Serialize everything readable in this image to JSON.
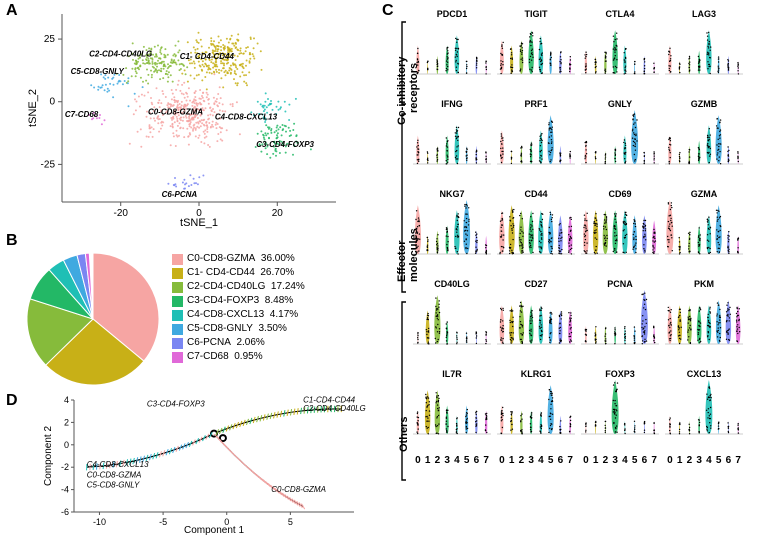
{
  "panels": {
    "A": "A",
    "B": "B",
    "C": "C",
    "D": "D"
  },
  "colors": {
    "C0": "#f6a5a3",
    "C1": "#c8b017",
    "C2": "#86bb3b",
    "C3": "#23b866",
    "C4": "#1fbfb5",
    "C5": "#3fa9e0",
    "C6": "#7a86f2",
    "C7": "#e069d8",
    "axis": "#555555",
    "text": "#000000",
    "trajGrey": "#888888"
  },
  "tsne": {
    "xlabel": "tSNE_1",
    "ylabel": "tSNE_2",
    "xlim": [
      -35,
      35
    ],
    "ylim": [
      -40,
      35
    ],
    "xticks": [
      -20,
      0,
      20
    ],
    "yticks": [
      -25,
      0,
      25
    ],
    "labels": {
      "C0": "C0-CD8-GZMA",
      "C1": "C1- CD4-CD44",
      "C2": "C2-CD4-CD40LG",
      "C3": "C3-CD4-FOXP3",
      "C4": "C4-CD8-CXCL13",
      "C5": "C5-CD8-GNLY",
      "C6": "C6-PCNA",
      "C7": "C7-CD68"
    },
    "label_pos": {
      "C0": [
        -6,
        -5
      ],
      "C1": [
        2,
        17
      ],
      "C2": [
        -20,
        18
      ],
      "C3": [
        22,
        -18
      ],
      "C4": [
        12,
        -7
      ],
      "C5": [
        -26,
        11
      ],
      "C6": [
        -5,
        -38
      ],
      "C7": [
        -30,
        -6
      ]
    },
    "centroids": {
      "C0": [
        -3,
        -5
      ],
      "C1": [
        6,
        17
      ],
      "C2": [
        -11,
        15
      ],
      "C3": [
        20,
        -15
      ],
      "C4": [
        18,
        -3
      ],
      "C5": [
        -22,
        7
      ],
      "C6": [
        -4,
        -33
      ],
      "C7": [
        -27,
        -6
      ]
    },
    "n_per_cluster": {
      "C0": 360,
      "C1": 267,
      "C2": 172,
      "C3": 85,
      "C4": 42,
      "C5": 35,
      "C6": 21,
      "C7": 10
    },
    "spread": {
      "C0": 13,
      "C1": 11,
      "C2": 9,
      "C3": 8,
      "C4": 6,
      "C5": 7,
      "C6": 5,
      "C7": 4
    }
  },
  "pie": {
    "items": [
      {
        "id": "C0",
        "label": "C0-CD8-GZMA",
        "pct": 36.0
      },
      {
        "id": "C1",
        "label": "C1- CD4-CD44",
        "pct": 26.7
      },
      {
        "id": "C2",
        "label": "C2-CD4-CD40LG",
        "pct": 17.24
      },
      {
        "id": "C3",
        "label": "C3-CD4-FOXP3",
        "pct": 8.48
      },
      {
        "id": "C4",
        "label": "C4-CD8-CXCL13",
        "pct": 4.17
      },
      {
        "id": "C5",
        "label": "C5-CD8-GNLY",
        "pct": 3.5
      },
      {
        "id": "C6",
        "label": "C6-PCNA",
        "pct": 2.06
      },
      {
        "id": "C7",
        "label": "C7-CD68",
        "pct": 0.95
      }
    ]
  },
  "violin": {
    "row_labels": {
      "co": "Co-inhibitory\nreceptors",
      "eff": "Effector\nmolecules",
      "oth": "Others"
    },
    "groups": [
      0,
      1,
      2,
      3,
      4,
      5,
      6,
      7
    ],
    "rows": [
      {
        "group": "co",
        "genes": [
          "PDCD1",
          "TIGIT",
          "CTLA4",
          "LAG3"
        ]
      },
      {
        "group": "eff",
        "genes": [
          "IFNG",
          "PRF1",
          "GNLY",
          "GZMB"
        ]
      },
      {
        "group": "eff",
        "genes": [
          "NKG7",
          "CD44",
          "CD69",
          "GZMA"
        ]
      },
      {
        "group": "oth",
        "genes": [
          "CD40LG",
          "CD27",
          "PCNA",
          "PKM"
        ]
      },
      {
        "group": "oth",
        "genes": [
          "IL7R",
          "KLRG1",
          "FOXP3",
          "CXCL13"
        ]
      }
    ],
    "profiles": {
      "PDCD1": [
        4,
        1,
        2,
        4,
        6,
        1,
        2,
        1
      ],
      "TIGIT": [
        5,
        4,
        5,
        7,
        6,
        3,
        3,
        2
      ],
      "CTLA4": [
        3,
        2,
        3,
        7,
        4,
        1,
        2,
        1
      ],
      "LAG3": [
        4,
        1,
        2,
        3,
        7,
        2,
        2,
        1
      ],
      "IFNG": [
        4,
        1,
        2,
        4,
        6,
        2,
        2,
        1
      ],
      "PRF1": [
        5,
        1,
        2,
        3,
        5,
        8,
        2,
        1
      ],
      "GNLY": [
        3,
        1,
        1,
        2,
        4,
        9,
        1,
        1
      ],
      "GZMB": [
        4,
        1,
        2,
        3,
        6,
        8,
        2,
        1
      ],
      "NKG7": [
        8,
        2,
        3,
        4,
        7,
        9,
        3,
        2
      ],
      "CD44": [
        7,
        8,
        7,
        7,
        7,
        7,
        6,
        6
      ],
      "CD69": [
        7,
        7,
        7,
        7,
        7,
        6,
        6,
        5
      ],
      "GZMA": [
        9,
        2,
        3,
        4,
        6,
        8,
        3,
        2
      ],
      "CD40LG": [
        1,
        5,
        8,
        3,
        1,
        1,
        1,
        1
      ],
      "CD27": [
        6,
        6,
        7,
        6,
        6,
        5,
        5,
        5
      ],
      "PCNA": [
        2,
        2,
        2,
        2,
        2,
        2,
        9,
        2
      ],
      "PKM": [
        6,
        6,
        6,
        6,
        6,
        7,
        7,
        6
      ],
      "IL7R": [
        3,
        7,
        7,
        4,
        2,
        4,
        3,
        3
      ],
      "KLRG1": [
        4,
        3,
        3,
        3,
        3,
        8,
        2,
        2
      ],
      "FOXP3": [
        1,
        1,
        1,
        9,
        1,
        1,
        1,
        1
      ],
      "CXCL13": [
        2,
        1,
        1,
        2,
        9,
        1,
        1,
        1
      ]
    }
  },
  "trajectory": {
    "xlabel": "Component 1",
    "ylabel": "Component 2",
    "xlim": [
      -12,
      10
    ],
    "ylim": [
      -6,
      4
    ],
    "xticks": [
      -10,
      -5,
      0,
      5
    ],
    "yticks": [
      -6,
      -4,
      -2,
      0,
      2,
      4
    ],
    "annot": {
      "left1": "C4-CD8-CXCL13",
      "left2": "C0-CD8-GZMA",
      "left3": "C5-CD8-GNLY",
      "topL": "C3-CD4-FOXP3",
      "topR1": "C1-CD4-CD44",
      "topR2": "C2-CD4-CD40LG",
      "bottom": "C0-CD8-GZMA"
    }
  }
}
